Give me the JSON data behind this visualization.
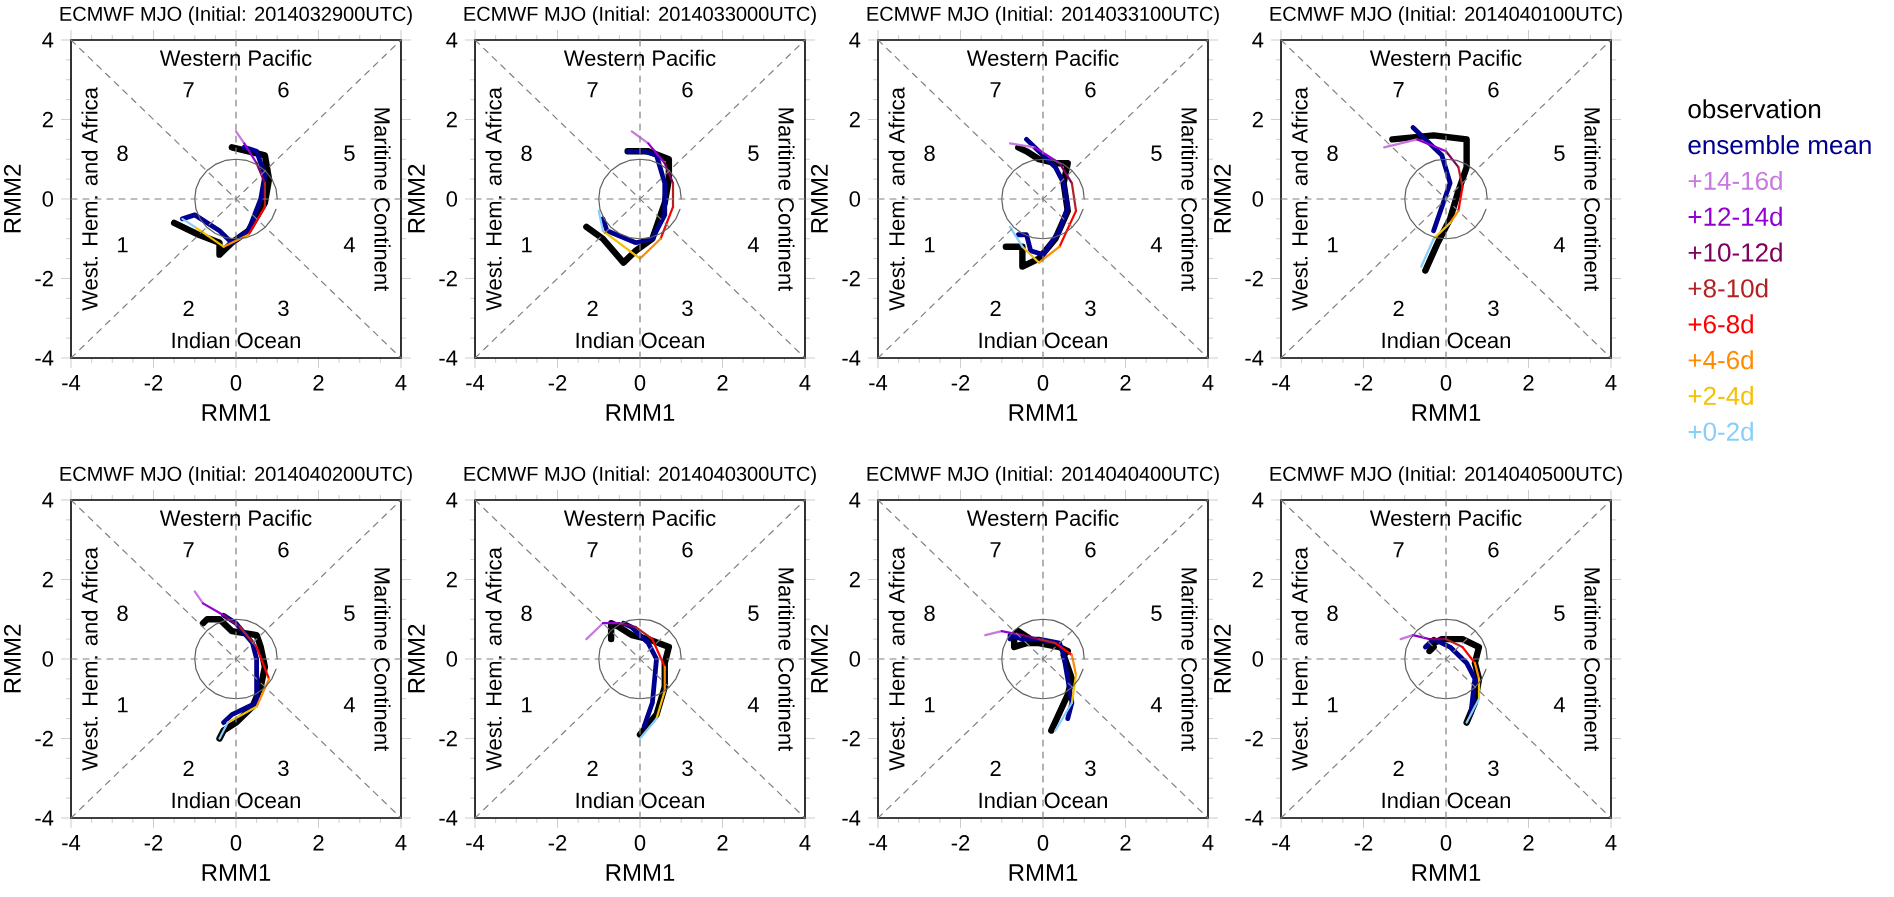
{
  "chart_data": [
    {
      "type": "line",
      "title": "ECMWF MJO (Initial: 2014032900UTC)",
      "xlabel": "RMM1",
      "ylabel": "RMM2",
      "xlim": [
        -4,
        4
      ],
      "ylim": [
        -4,
        4
      ],
      "xticks": [
        -4,
        -2,
        0,
        2,
        4
      ],
      "yticks": [
        -4,
        -2,
        0,
        2,
        4
      ],
      "annotations": [
        "1",
        "2",
        "3",
        "4",
        "5",
        "6",
        "7",
        "8",
        "Indian Ocean",
        "Western Pacific",
        "West. Hem. and Africa",
        "Maritime Continent"
      ],
      "series": [
        {
          "color": "#808080",
          "line_style": "dashed",
          "x": [
            0,
            0
          ],
          "values": [
            -4,
            4
          ]
        },
        {
          "color": "#808080",
          "line_style": "dashed",
          "x": [
            -4,
            4
          ],
          "values": [
            0,
            0
          ]
        },
        {
          "color": "#808080",
          "line_style": "dashed",
          "x": [
            -4,
            4
          ],
          "values": [
            -4,
            4
          ]
        },
        {
          "color": "#808080",
          "line_style": "dashed",
          "x": [
            -4,
            4
          ],
          "values": [
            4,
            -4
          ]
        },
        {
          "color": "#606060",
          "x": [
            1,
            0.97,
            0.87,
            0.71,
            0.5,
            0.26,
            0,
            -0.26,
            -0.5,
            -0.71,
            -0.87,
            -0.97,
            -1,
            -0.97,
            -0.87,
            -0.71,
            -0.5,
            -0.26,
            0,
            0.26,
            0.5,
            0.71,
            0.87,
            0.97
          ],
          "values": [
            0,
            0.26,
            0.5,
            0.71,
            0.87,
            0.97,
            1,
            0.97,
            0.87,
            0.71,
            0.5,
            0.26,
            0,
            -0.26,
            -0.5,
            -0.71,
            -0.87,
            -0.97,
            -1,
            -0.97,
            -0.87,
            -0.71,
            -0.5,
            -0.26
          ]
        },
        {
          "color": "#87cefa",
          "x": [
            -1.3,
            -1.0
          ],
          "values": [
            -0.5,
            -0.7
          ]
        },
        {
          "color": "#f5c000",
          "x": [
            -1.0,
            -0.3
          ],
          "values": [
            -0.7,
            -1.2
          ]
        },
        {
          "color": "#ff8c00",
          "x": [
            -0.3,
            0.3
          ],
          "values": [
            -1.2,
            -0.9
          ]
        },
        {
          "color": "#ff0000",
          "x": [
            0.3,
            0.7
          ],
          "values": [
            -0.9,
            -0.2
          ]
        },
        {
          "color": "#b22222",
          "x": [
            0.7,
            0.7
          ],
          "values": [
            -0.2,
            0.4
          ]
        },
        {
          "color": "#800060",
          "x": [
            0.7,
            0.5
          ],
          "values": [
            0.4,
            0.9
          ]
        },
        {
          "color": "#9400d3",
          "x": [
            0.5,
            0.2
          ],
          "values": [
            0.9,
            1.4
          ]
        },
        {
          "color": "#c878e0",
          "x": [
            0.2,
            0.0
          ],
          "values": [
            1.4,
            1.7
          ]
        },
        {
          "color": "#000090",
          "x": [
            -1.3,
            -1.0,
            -0.4,
            -0.1,
            0.3,
            0.6,
            0.7,
            0.5,
            0.2
          ],
          "values": [
            -0.5,
            -0.4,
            -0.8,
            -1.1,
            -0.8,
            0.0,
            0.6,
            1.2,
            1.3
          ]
        },
        {
          "color": "#000000",
          "x": [
            -1.5,
            -0.9,
            -0.4,
            -0.4,
            -0.1,
            0.3,
            0.7,
            0.8,
            0.7,
            -0.1
          ],
          "values": [
            -0.6,
            -0.9,
            -1.1,
            -1.4,
            -1.1,
            -0.8,
            -0.1,
            0.5,
            1.1,
            1.3
          ]
        }
      ]
    },
    {
      "type": "line",
      "title": "ECMWF MJO (Initial: 2014033000UTC)",
      "xlabel": "RMM1",
      "ylabel": "RMM2",
      "xlim": [
        -4,
        4
      ],
      "ylim": [
        -4,
        4
      ],
      "xticks": [
        -4,
        -2,
        0,
        2,
        4
      ],
      "yticks": [
        -4,
        -2,
        0,
        2,
        4
      ],
      "annotations": [
        "1",
        "2",
        "3",
        "4",
        "5",
        "6",
        "7",
        "8",
        "Indian Ocean",
        "Western Pacific",
        "West. Hem. and Africa",
        "Maritime Continent"
      ],
      "series": [
        {
          "color": "#808080",
          "line_style": "dashed",
          "x": [
            0,
            0
          ],
          "values": [
            -4,
            4
          ]
        },
        {
          "color": "#808080",
          "line_style": "dashed",
          "x": [
            -4,
            4
          ],
          "values": [
            0,
            0
          ]
        },
        {
          "color": "#808080",
          "line_style": "dashed",
          "x": [
            -4,
            4
          ],
          "values": [
            -4,
            4
          ]
        },
        {
          "color": "#808080",
          "line_style": "dashed",
          "x": [
            -4,
            4
          ],
          "values": [
            4,
            -4
          ]
        },
        {
          "color": "#606060",
          "x": [
            1,
            0.97,
            0.87,
            0.71,
            0.5,
            0.26,
            0,
            -0.26,
            -0.5,
            -0.71,
            -0.87,
            -0.97,
            -1,
            -0.97,
            -0.87,
            -0.71,
            -0.5,
            -0.26,
            0,
            0.26,
            0.5,
            0.71,
            0.87,
            0.97
          ],
          "values": [
            0,
            0.26,
            0.5,
            0.71,
            0.87,
            0.97,
            1,
            0.97,
            0.87,
            0.71,
            0.5,
            0.26,
            0,
            -0.26,
            -0.5,
            -0.71,
            -0.87,
            -0.97,
            -1,
            -0.97,
            -0.87,
            -0.71,
            -0.5,
            -0.26
          ]
        },
        {
          "color": "#87cefa",
          "x": [
            -1.0,
            -0.9
          ],
          "values": [
            -0.3,
            -0.8
          ]
        },
        {
          "color": "#f5c000",
          "x": [
            -0.9,
            0.0
          ],
          "values": [
            -0.8,
            -1.5
          ]
        },
        {
          "color": "#ff8c00",
          "x": [
            0.0,
            0.5
          ],
          "values": [
            -1.5,
            -1.0
          ]
        },
        {
          "color": "#ff0000",
          "x": [
            0.5,
            0.8
          ],
          "values": [
            -1.0,
            -0.2
          ]
        },
        {
          "color": "#b22222",
          "x": [
            0.8,
            0.8
          ],
          "values": [
            -0.2,
            0.4
          ]
        },
        {
          "color": "#800060",
          "x": [
            0.8,
            0.6
          ],
          "values": [
            0.4,
            0.9
          ]
        },
        {
          "color": "#9400d3",
          "x": [
            0.6,
            0.2
          ],
          "values": [
            0.9,
            1.4
          ]
        },
        {
          "color": "#c878e0",
          "x": [
            0.2,
            -0.2
          ],
          "values": [
            1.4,
            1.7
          ]
        },
        {
          "color": "#000090",
          "x": [
            -0.9,
            -0.8,
            -0.1,
            0.3,
            0.6,
            0.6,
            0.4,
            0.1,
            -0.3
          ],
          "values": [
            -0.5,
            -0.8,
            -1.1,
            -1.0,
            -0.4,
            0.4,
            1.1,
            1.2,
            1.2
          ]
        },
        {
          "color": "#000000",
          "x": [
            -1.3,
            -0.9,
            -0.4,
            -0.1,
            0.3,
            0.6,
            0.7,
            0.7,
            0.2,
            -0.3
          ],
          "values": [
            -0.7,
            -1.0,
            -1.6,
            -1.3,
            -1.0,
            -0.1,
            0.5,
            1.0,
            1.2,
            1.2
          ]
        }
      ]
    },
    {
      "type": "line",
      "title": "ECMWF MJO (Initial: 2014033100UTC)",
      "xlabel": "RMM1",
      "ylabel": "RMM2",
      "xlim": [
        -4,
        4
      ],
      "ylim": [
        -4,
        4
      ],
      "xticks": [
        -4,
        -2,
        0,
        2,
        4
      ],
      "yticks": [
        -4,
        -2,
        0,
        2,
        4
      ],
      "annotations": [
        "1",
        "2",
        "3",
        "4",
        "5",
        "6",
        "7",
        "8",
        "Indian Ocean",
        "Western Pacific",
        "West. Hem. and Africa",
        "Maritime Continent"
      ],
      "series": [
        {
          "color": "#808080",
          "line_style": "dashed",
          "x": [
            0,
            0
          ],
          "values": [
            -4,
            4
          ]
        },
        {
          "color": "#808080",
          "line_style": "dashed",
          "x": [
            -4,
            4
          ],
          "values": [
            0,
            0
          ]
        },
        {
          "color": "#808080",
          "line_style": "dashed",
          "x": [
            -4,
            4
          ],
          "values": [
            -4,
            4
          ]
        },
        {
          "color": "#808080",
          "line_style": "dashed",
          "x": [
            -4,
            4
          ],
          "values": [
            4,
            -4
          ]
        },
        {
          "color": "#606060",
          "x": [
            1,
            0.97,
            0.87,
            0.71,
            0.5,
            0.26,
            0,
            -0.26,
            -0.5,
            -0.71,
            -0.87,
            -0.97,
            -1,
            -0.97,
            -0.87,
            -0.71,
            -0.5,
            -0.26,
            0,
            0.26,
            0.5,
            0.71,
            0.87,
            0.97
          ],
          "values": [
            0,
            0.26,
            0.5,
            0.71,
            0.87,
            0.97,
            1,
            0.97,
            0.87,
            0.71,
            0.5,
            0.26,
            0,
            -0.26,
            -0.5,
            -0.71,
            -0.87,
            -0.97,
            -1,
            -0.97,
            -0.87,
            -0.71,
            -0.5,
            -0.26
          ]
        },
        {
          "color": "#87cefa",
          "x": [
            -0.8,
            -0.5
          ],
          "values": [
            -0.7,
            -1.2
          ]
        },
        {
          "color": "#f5c000",
          "x": [
            -0.5,
            -0.1
          ],
          "values": [
            -1.2,
            -1.6
          ]
        },
        {
          "color": "#ff8c00",
          "x": [
            -0.1,
            0.4
          ],
          "values": [
            -1.6,
            -1.2
          ]
        },
        {
          "color": "#ff0000",
          "x": [
            0.4,
            0.8
          ],
          "values": [
            -1.2,
            -0.3
          ]
        },
        {
          "color": "#b22222",
          "x": [
            0.8,
            0.7
          ],
          "values": [
            -0.3,
            0.4
          ]
        },
        {
          "color": "#800060",
          "x": [
            0.7,
            0.4
          ],
          "values": [
            0.4,
            0.9
          ]
        },
        {
          "color": "#9400d3",
          "x": [
            0.4,
            -0.2
          ],
          "values": [
            0.9,
            1.3
          ]
        },
        {
          "color": "#c878e0",
          "x": [
            -0.2,
            -0.8
          ],
          "values": [
            1.3,
            1.4
          ]
        },
        {
          "color": "#000090",
          "x": [
            -0.6,
            -0.4,
            -0.3,
            0.0,
            0.4,
            0.6,
            0.5,
            0.3,
            0.0,
            -0.4
          ],
          "values": [
            -0.9,
            -0.9,
            -1.3,
            -1.4,
            -0.8,
            -0.2,
            0.4,
            0.8,
            1.1,
            1.5
          ]
        },
        {
          "color": "#000000",
          "x": [
            -0.9,
            -0.5,
            -0.5,
            -0.1,
            0.3,
            0.6,
            0.5,
            0.6,
            0.3,
            -0.1,
            -0.4,
            -0.6
          ],
          "values": [
            -1.2,
            -1.2,
            -1.7,
            -1.5,
            -1.0,
            -0.3,
            0.4,
            0.9,
            0.9,
            1.0,
            1.2,
            1.3
          ]
        }
      ]
    },
    {
      "type": "line",
      "title": "ECMWF MJO (Initial: 2014040100UTC)",
      "xlabel": "RMM1",
      "ylabel": "RMM2",
      "xlim": [
        -4,
        4
      ],
      "ylim": [
        -4,
        4
      ],
      "xticks": [
        -4,
        -2,
        0,
        2,
        4
      ],
      "yticks": [
        -4,
        -2,
        0,
        2,
        4
      ],
      "legend": "right",
      "annotations": [
        "1",
        "2",
        "3",
        "4",
        "5",
        "6",
        "7",
        "8",
        "Indian Ocean",
        "Western Pacific",
        "West. Hem. and Africa",
        "Maritime Continent"
      ],
      "series": [
        {
          "color": "#808080",
          "line_style": "dashed",
          "x": [
            0,
            0
          ],
          "values": [
            -4,
            4
          ]
        },
        {
          "color": "#808080",
          "line_style": "dashed",
          "x": [
            -4,
            4
          ],
          "values": [
            0,
            0
          ]
        },
        {
          "color": "#808080",
          "line_style": "dashed",
          "x": [
            -4,
            4
          ],
          "values": [
            -4,
            4
          ]
        },
        {
          "color": "#808080",
          "line_style": "dashed",
          "x": [
            -4,
            4
          ],
          "values": [
            4,
            -4
          ]
        },
        {
          "color": "#606060",
          "x": [
            1,
            0.97,
            0.87,
            0.71,
            0.5,
            0.26,
            0,
            -0.26,
            -0.5,
            -0.71,
            -0.87,
            -0.97,
            -1,
            -0.97,
            -0.87,
            -0.71,
            -0.5,
            -0.26,
            0,
            0.26,
            0.5,
            0.71,
            0.87,
            0.97
          ],
          "values": [
            0,
            0.26,
            0.5,
            0.71,
            0.87,
            0.97,
            1,
            0.97,
            0.87,
            0.71,
            0.5,
            0.26,
            0,
            -0.26,
            -0.5,
            -0.71,
            -0.87,
            -0.97,
            -1,
            -0.97,
            -0.87,
            -0.71,
            -0.5,
            -0.26
          ]
        },
        {
          "name": "+0-2d",
          "color": "#87cefa",
          "x": [
            -0.6,
            -0.3
          ],
          "values": [
            -1.7,
            -1.0
          ]
        },
        {
          "name": "+2-4d",
          "color": "#f5c000",
          "x": [
            -0.3,
            0.1
          ],
          "values": [
            -1.0,
            -0.6
          ]
        },
        {
          "name": "+4-6d",
          "color": "#ff8c00",
          "x": [
            0.1,
            0.3
          ],
          "values": [
            -0.6,
            -0.3
          ]
        },
        {
          "name": "+6-8d",
          "color": "#ff0000",
          "x": [
            0.3,
            0.4
          ],
          "values": [
            -0.3,
            0.3
          ]
        },
        {
          "name": "+8-10d",
          "color": "#b22222",
          "x": [
            0.4,
            0.3
          ],
          "values": [
            0.3,
            0.8
          ]
        },
        {
          "name": "+10-12d",
          "color": "#800060",
          "x": [
            0.3,
            0.0
          ],
          "values": [
            0.8,
            1.2
          ]
        },
        {
          "name": "+12-14d",
          "color": "#9400d3",
          "x": [
            0.0,
            -0.7
          ],
          "values": [
            1.2,
            1.5
          ]
        },
        {
          "name": "+14-16d",
          "color": "#c878e0",
          "x": [
            -0.7,
            -1.5
          ],
          "values": [
            1.5,
            1.3
          ]
        },
        {
          "name": "ensemble mean",
          "color": "#000090",
          "x": [
            -0.3,
            -0.1,
            0.1,
            -0.1,
            -0.5,
            -0.8
          ],
          "values": [
            -0.8,
            -0.2,
            0.4,
            1.1,
            1.5,
            1.8
          ]
        },
        {
          "name": "observation",
          "color": "#000000",
          "x": [
            -0.5,
            -0.2,
            0.1,
            0.3,
            0.5,
            0.5,
            -0.3,
            -1.3
          ],
          "values": [
            -1.8,
            -1.1,
            -0.5,
            0.2,
            0.8,
            1.5,
            1.6,
            1.5
          ]
        }
      ]
    },
    {
      "type": "line",
      "title": "ECMWF MJO (Initial: 2014040200UTC)",
      "xlabel": "RMM1",
      "ylabel": "RMM2",
      "xlim": [
        -4,
        4
      ],
      "ylim": [
        -4,
        4
      ],
      "xticks": [
        -4,
        -2,
        0,
        2,
        4
      ],
      "yticks": [
        -4,
        -2,
        0,
        2,
        4
      ],
      "annotations": [
        "1",
        "2",
        "3",
        "4",
        "5",
        "6",
        "7",
        "8",
        "Indian Ocean",
        "Western Pacific",
        "West. Hem. and Africa",
        "Maritime Continent"
      ],
      "series": [
        {
          "color": "#808080",
          "line_style": "dashed",
          "x": [
            0,
            0
          ],
          "values": [
            -4,
            4
          ]
        },
        {
          "color": "#808080",
          "line_style": "dashed",
          "x": [
            -4,
            4
          ],
          "values": [
            0,
            0
          ]
        },
        {
          "color": "#808080",
          "line_style": "dashed",
          "x": [
            -4,
            4
          ],
          "values": [
            -4,
            4
          ]
        },
        {
          "color": "#808080",
          "line_style": "dashed",
          "x": [
            -4,
            4
          ],
          "values": [
            4,
            -4
          ]
        },
        {
          "color": "#606060",
          "x": [
            1,
            0.97,
            0.87,
            0.71,
            0.5,
            0.26,
            0,
            -0.26,
            -0.5,
            -0.71,
            -0.87,
            -0.97,
            -1,
            -0.97,
            -0.87,
            -0.71,
            -0.5,
            -0.26,
            0,
            0.26,
            0.5,
            0.71,
            0.87,
            0.97
          ],
          "values": [
            0,
            0.26,
            0.5,
            0.71,
            0.87,
            0.97,
            1,
            0.97,
            0.87,
            0.71,
            0.5,
            0.26,
            0,
            -0.26,
            -0.5,
            -0.71,
            -0.87,
            -0.97,
            -1,
            -0.97,
            -0.87,
            -0.71,
            -0.5,
            -0.26
          ]
        },
        {
          "color": "#87cefa",
          "x": [
            -0.4,
            -0.2
          ],
          "values": [
            -2.0,
            -1.6
          ]
        },
        {
          "color": "#f5c000",
          "x": [
            -0.2,
            0.5
          ],
          "values": [
            -1.6,
            -1.2
          ]
        },
        {
          "color": "#ff8c00",
          "x": [
            0.5,
            0.8
          ],
          "values": [
            -1.2,
            -0.5
          ]
        },
        {
          "color": "#ff0000",
          "x": [
            0.8,
            0.5
          ],
          "values": [
            -0.5,
            0.3
          ]
        },
        {
          "color": "#b22222",
          "x": [
            0.5,
            0.1
          ],
          "values": [
            0.3,
            0.8
          ]
        },
        {
          "color": "#800060",
          "x": [
            0.1,
            -0.3
          ],
          "values": [
            0.8,
            1.1
          ]
        },
        {
          "color": "#9400d3",
          "x": [
            -0.3,
            -0.8
          ],
          "values": [
            1.1,
            1.4
          ]
        },
        {
          "color": "#c878e0",
          "x": [
            -0.8,
            -1.0
          ],
          "values": [
            1.4,
            1.7
          ]
        },
        {
          "color": "#000090",
          "x": [
            -0.3,
            -0.1,
            0.5,
            0.5,
            0.4,
            0.0,
            -0.3
          ],
          "values": [
            -1.6,
            -1.4,
            -1.1,
            0.0,
            0.4,
            0.9,
            1.1
          ]
        },
        {
          "color": "#000000",
          "x": [
            -0.4,
            -0.3,
            0.0,
            0.4,
            0.6,
            0.7,
            0.6,
            0.5,
            -0.1,
            -0.4,
            -0.7,
            -0.8
          ],
          "values": [
            -2.0,
            -1.8,
            -1.6,
            -1.2,
            -0.7,
            -0.2,
            0.3,
            0.6,
            0.7,
            1.0,
            1.0,
            0.9
          ]
        }
      ]
    },
    {
      "type": "line",
      "title": "ECMWF MJO (Initial: 2014040300UTC)",
      "xlabel": "RMM1",
      "ylabel": "RMM2",
      "xlim": [
        -4,
        4
      ],
      "ylim": [
        -4,
        4
      ],
      "xticks": [
        -4,
        -2,
        0,
        2,
        4
      ],
      "yticks": [
        -4,
        -2,
        0,
        2,
        4
      ],
      "annotations": [
        "1",
        "2",
        "3",
        "4",
        "5",
        "6",
        "7",
        "8",
        "Indian Ocean",
        "Western Pacific",
        "West. Hem. and Africa",
        "Maritime Continent"
      ],
      "series": [
        {
          "color": "#808080",
          "line_style": "dashed",
          "x": [
            0,
            0
          ],
          "values": [
            -4,
            4
          ]
        },
        {
          "color": "#808080",
          "line_style": "dashed",
          "x": [
            -4,
            4
          ],
          "values": [
            0,
            0
          ]
        },
        {
          "color": "#808080",
          "line_style": "dashed",
          "x": [
            -4,
            4
          ],
          "values": [
            -4,
            4
          ]
        },
        {
          "color": "#808080",
          "line_style": "dashed",
          "x": [
            -4,
            4
          ],
          "values": [
            4,
            -4
          ]
        },
        {
          "color": "#606060",
          "x": [
            1,
            0.97,
            0.87,
            0.71,
            0.5,
            0.26,
            0,
            -0.26,
            -0.5,
            -0.71,
            -0.87,
            -0.97,
            -1,
            -0.97,
            -0.87,
            -0.71,
            -0.5,
            -0.26,
            0,
            0.26,
            0.5,
            0.71,
            0.87,
            0.97
          ],
          "values": [
            0,
            0.26,
            0.5,
            0.71,
            0.87,
            0.97,
            1,
            0.97,
            0.87,
            0.71,
            0.5,
            0.26,
            0,
            -0.26,
            -0.5,
            -0.71,
            -0.87,
            -0.97,
            -1,
            -0.97,
            -0.87,
            -0.71,
            -0.5,
            -0.26
          ]
        },
        {
          "color": "#87cefa",
          "x": [
            0.0,
            0.4
          ],
          "values": [
            -2.0,
            -1.5
          ]
        },
        {
          "color": "#f5c000",
          "x": [
            0.4,
            0.6
          ],
          "values": [
            -1.5,
            -0.8
          ]
        },
        {
          "color": "#ff8c00",
          "x": [
            0.6,
            0.6
          ],
          "values": [
            -0.8,
            -0.2
          ]
        },
        {
          "color": "#ff0000",
          "x": [
            0.6,
            0.3
          ],
          "values": [
            -0.2,
            0.5
          ]
        },
        {
          "color": "#b22222",
          "x": [
            0.3,
            -0.1
          ],
          "values": [
            0.5,
            0.8
          ]
        },
        {
          "color": "#800060",
          "x": [
            -0.1,
            -0.5
          ],
          "values": [
            0.8,
            0.9
          ]
        },
        {
          "color": "#9400d3",
          "x": [
            -0.5,
            -0.9
          ],
          "values": [
            0.9,
            0.9
          ]
        },
        {
          "color": "#c878e0",
          "x": [
            -0.9,
            -1.3
          ],
          "values": [
            0.9,
            0.5
          ]
        },
        {
          "color": "#000090",
          "x": [
            0.1,
            0.3,
            0.4,
            0.2,
            -0.2,
            -0.4
          ],
          "values": [
            -1.7,
            -1.1,
            0.0,
            0.4,
            0.8,
            0.9
          ]
        },
        {
          "color": "#000000",
          "x": [
            0.0,
            0.4,
            0.6,
            0.6,
            0.7,
            0.2,
            -0.2,
            -0.5,
            -0.7,
            -0.7
          ],
          "values": [
            -1.9,
            -1.4,
            -0.7,
            -0.1,
            0.3,
            0.5,
            0.6,
            0.8,
            0.9,
            0.5
          ]
        }
      ]
    },
    {
      "type": "line",
      "title": "ECMWF MJO (Initial: 2014040400UTC)",
      "xlabel": "RMM1",
      "ylabel": "RMM2",
      "xlim": [
        -4,
        4
      ],
      "ylim": [
        -4,
        4
      ],
      "xticks": [
        -4,
        -2,
        0,
        2,
        4
      ],
      "yticks": [
        -4,
        -2,
        0,
        2,
        4
      ],
      "annotations": [
        "1",
        "2",
        "3",
        "4",
        "5",
        "6",
        "7",
        "8",
        "Indian Ocean",
        "Western Pacific",
        "West. Hem. and Africa",
        "Maritime Continent"
      ],
      "series": [
        {
          "color": "#808080",
          "line_style": "dashed",
          "x": [
            0,
            0
          ],
          "values": [
            -4,
            4
          ]
        },
        {
          "color": "#808080",
          "line_style": "dashed",
          "x": [
            -4,
            4
          ],
          "values": [
            0,
            0
          ]
        },
        {
          "color": "#808080",
          "line_style": "dashed",
          "x": [
            -4,
            4
          ],
          "values": [
            -4,
            4
          ]
        },
        {
          "color": "#808080",
          "line_style": "dashed",
          "x": [
            -4,
            4
          ],
          "values": [
            4,
            -4
          ]
        },
        {
          "color": "#606060",
          "x": [
            1,
            0.97,
            0.87,
            0.71,
            0.5,
            0.26,
            0,
            -0.26,
            -0.5,
            -0.71,
            -0.87,
            -0.97,
            -1,
            -0.97,
            -0.87,
            -0.71,
            -0.5,
            -0.26,
            0,
            0.26,
            0.5,
            0.71,
            0.87,
            0.97
          ],
          "values": [
            0,
            0.26,
            0.5,
            0.71,
            0.87,
            0.97,
            1,
            0.97,
            0.87,
            0.71,
            0.5,
            0.26,
            0,
            -0.26,
            -0.5,
            -0.71,
            -0.87,
            -0.97,
            -1,
            -0.97,
            -0.87,
            -0.71,
            -0.5,
            -0.26
          ]
        },
        {
          "color": "#87cefa",
          "x": [
            0.3,
            0.7
          ],
          "values": [
            -1.8,
            -1.1
          ]
        },
        {
          "color": "#f5c000",
          "x": [
            0.7,
            0.8
          ],
          "values": [
            -1.1,
            -0.4
          ]
        },
        {
          "color": "#ff8c00",
          "x": [
            0.8,
            0.7
          ],
          "values": [
            -0.4,
            0.1
          ]
        },
        {
          "color": "#ff0000",
          "x": [
            0.7,
            0.3
          ],
          "values": [
            0.1,
            0.4
          ]
        },
        {
          "color": "#b22222",
          "x": [
            0.3,
            -0.1
          ],
          "values": [
            0.4,
            0.5
          ]
        },
        {
          "color": "#800060",
          "x": [
            -0.1,
            -0.5
          ],
          "values": [
            0.5,
            0.6
          ]
        },
        {
          "color": "#9400d3",
          "x": [
            -0.5,
            -1.0
          ],
          "values": [
            0.6,
            0.7
          ]
        },
        {
          "color": "#c878e0",
          "x": [
            -1.0,
            -1.4
          ],
          "values": [
            0.7,
            0.6
          ]
        },
        {
          "color": "#000090",
          "x": [
            0.6,
            0.7,
            0.6,
            0.5,
            0.4,
            -0.1,
            -0.5,
            -0.8,
            -0.8
          ],
          "values": [
            -1.5,
            -1.1,
            -0.5,
            0.1,
            0.4,
            0.5,
            0.5,
            0.6,
            0.5
          ]
        },
        {
          "color": "#000000",
          "x": [
            0.2,
            0.6,
            0.7,
            0.5,
            0.6,
            0.4,
            -0.1,
            -0.4,
            -0.7,
            -0.7,
            -0.6,
            -0.3
          ],
          "values": [
            -1.8,
            -0.9,
            -0.5,
            0.1,
            0.2,
            0.3,
            0.4,
            0.4,
            0.3,
            0.6,
            0.7,
            0.5
          ]
        }
      ]
    },
    {
      "type": "line",
      "title": "ECMWF MJO (Initial: 2014040500UTC)",
      "xlabel": "RMM1",
      "ylabel": "RMM2",
      "xlim": [
        -4,
        4
      ],
      "ylim": [
        -4,
        4
      ],
      "xticks": [
        -4,
        -2,
        0,
        2,
        4
      ],
      "yticks": [
        -4,
        -2,
        0,
        2,
        4
      ],
      "annotations": [
        "1",
        "2",
        "3",
        "4",
        "5",
        "6",
        "7",
        "8",
        "Indian Ocean",
        "Western Pacific",
        "West. Hem. and Africa",
        "Maritime Continent"
      ],
      "series": [
        {
          "color": "#808080",
          "line_style": "dashed",
          "x": [
            0,
            0
          ],
          "values": [
            -4,
            4
          ]
        },
        {
          "color": "#808080",
          "line_style": "dashed",
          "x": [
            -4,
            4
          ],
          "values": [
            0,
            0
          ]
        },
        {
          "color": "#808080",
          "line_style": "dashed",
          "x": [
            -4,
            4
          ],
          "values": [
            -4,
            4
          ]
        },
        {
          "color": "#808080",
          "line_style": "dashed",
          "x": [
            -4,
            4
          ],
          "values": [
            4,
            -4
          ]
        },
        {
          "color": "#606060",
          "x": [
            1,
            0.97,
            0.87,
            0.71,
            0.5,
            0.26,
            0,
            -0.26,
            -0.5,
            -0.71,
            -0.87,
            -0.97,
            -1,
            -0.97,
            -0.87,
            -0.71,
            -0.5,
            -0.26,
            0,
            0.26,
            0.5,
            0.71,
            0.87,
            0.97
          ],
          "values": [
            0,
            0.26,
            0.5,
            0.71,
            0.87,
            0.97,
            1,
            0.97,
            0.87,
            0.71,
            0.5,
            0.26,
            0,
            -0.26,
            -0.5,
            -0.71,
            -0.87,
            -0.97,
            -1,
            -0.97,
            -0.87,
            -0.71,
            -0.5,
            -0.26
          ]
        },
        {
          "color": "#87cefa",
          "x": [
            0.5,
            0.8
          ],
          "values": [
            -1.6,
            -1.0
          ]
        },
        {
          "color": "#f5c000",
          "x": [
            0.8,
            0.8
          ],
          "values": [
            -1.0,
            -0.5
          ]
        },
        {
          "color": "#ff8c00",
          "x": [
            0.8,
            0.7
          ],
          "values": [
            -0.5,
            -0.1
          ]
        },
        {
          "color": "#ff0000",
          "x": [
            0.7,
            0.4
          ],
          "values": [
            -0.1,
            0.3
          ]
        },
        {
          "color": "#b22222",
          "x": [
            0.4,
            0.0
          ],
          "values": [
            0.3,
            0.5
          ]
        },
        {
          "color": "#800060",
          "x": [
            0.0,
            -0.4
          ],
          "values": [
            0.5,
            0.5
          ]
        },
        {
          "color": "#9400d3",
          "x": [
            -0.4,
            -0.8
          ],
          "values": [
            0.5,
            0.6
          ]
        },
        {
          "color": "#c878e0",
          "x": [
            -0.8,
            -1.1
          ],
          "values": [
            0.6,
            0.5
          ]
        },
        {
          "color": "#000090",
          "x": [
            0.6,
            0.7,
            0.5,
            0.1,
            -0.3,
            -0.5
          ],
          "values": [
            -1.4,
            -0.5,
            -0.1,
            0.3,
            0.5,
            0.3
          ]
        },
        {
          "color": "#000000",
          "x": [
            0.5,
            0.7,
            0.8,
            0.7,
            0.8,
            0.4,
            -0.1,
            -0.3,
            -0.4,
            -0.3
          ],
          "values": [
            -1.6,
            -1.1,
            -0.5,
            -0.1,
            0.3,
            0.5,
            0.5,
            0.4,
            0.2,
            0.3
          ]
        }
      ]
    }
  ]
}
